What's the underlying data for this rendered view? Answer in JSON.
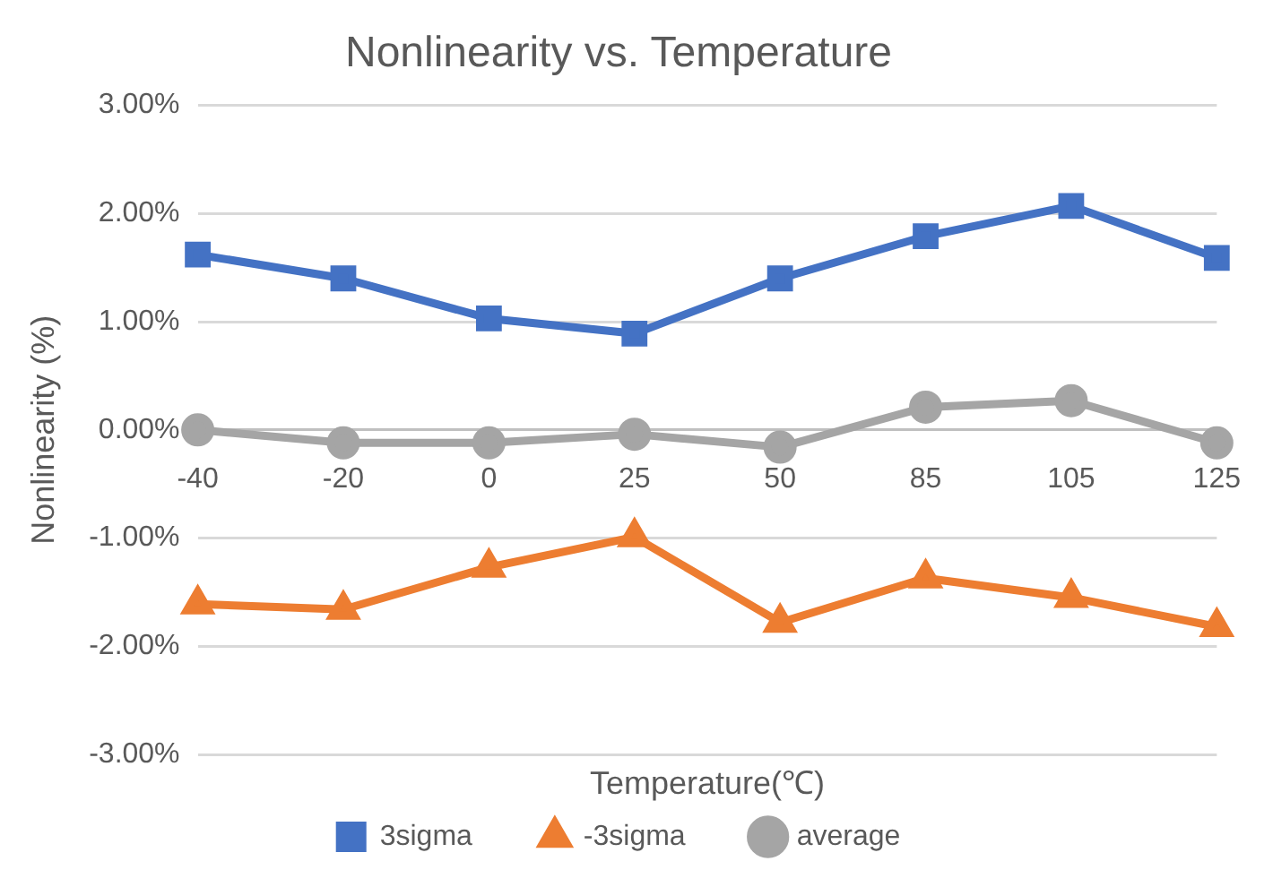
{
  "chart_data": {
    "type": "line",
    "title": "Nonlinearity vs. Temperature",
    "xlabel": "Temperature(℃)",
    "ylabel": "Nonlinearity (%)",
    "categories": [
      "-40",
      "-20",
      "0",
      "25",
      "50",
      "85",
      "105",
      "125"
    ],
    "series": [
      {
        "name": "3sigma",
        "color": "#4472c4",
        "marker": "square",
        "values": [
          1.62,
          1.4,
          1.03,
          0.89,
          1.4,
          1.79,
          2.07,
          1.59
        ]
      },
      {
        "name": "-3sigma",
        "color": "#ed7d31",
        "marker": "triangle",
        "values": [
          -1.61,
          -1.66,
          -1.27,
          -0.99,
          -1.78,
          -1.37,
          -1.55,
          -1.82
        ]
      },
      {
        "name": "average",
        "color": "#a5a5a5",
        "marker": "circle",
        "values": [
          0.0,
          -0.12,
          -0.12,
          -0.04,
          -0.16,
          0.21,
          0.27,
          -0.12
        ]
      }
    ],
    "ylim": [
      -3,
      3
    ],
    "yticks": [
      {
        "value": -3,
        "label": "-3.00%"
      },
      {
        "value": -2,
        "label": "-2.00%"
      },
      {
        "value": -1,
        "label": "-1.00%"
      },
      {
        "value": 0,
        "label": "0.00%"
      },
      {
        "value": 1,
        "label": "1.00%"
      },
      {
        "value": 2,
        "label": "2.00%"
      },
      {
        "value": 3,
        "label": "3.00%"
      }
    ],
    "grid": "y",
    "legend": "bottom",
    "line_style": "solid"
  }
}
